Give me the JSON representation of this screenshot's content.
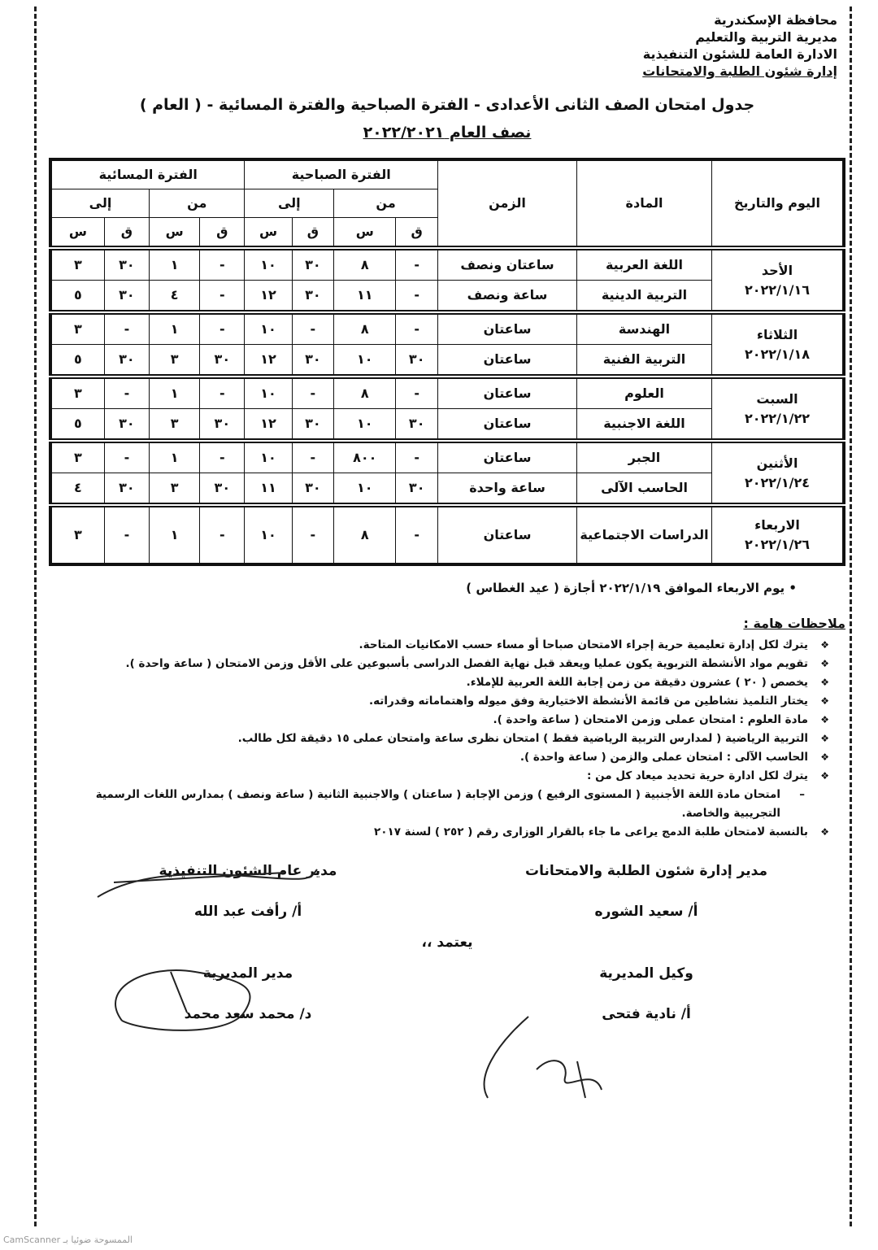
{
  "header": {
    "lines": [
      "محافظة الإسكندرية",
      "مديرية التربية والتعليم",
      "الادارة العامة للشئون التنفيذية",
      "إدارة شئون الطلبة والامتحانات"
    ]
  },
  "title": "جدول امتحان الصف الثانى الأعدادى - الفترة الصباحية والفترة المسائية - ( العام )",
  "subtitle": "نصف العام ٢٠٢٢/٢٠٢١",
  "table": {
    "headers": {
      "day": "اليوم والتاريخ",
      "subject": "المادة",
      "duration": "الزمن",
      "morning": "الفترة الصباحية",
      "evening": "الفترة المسائية",
      "from": "من",
      "to": "إلى",
      "minute": "ق",
      "hour": "س"
    },
    "days": [
      {
        "day": "الأحد",
        "date": "٢٠٢٢/١/١٦",
        "rows": [
          {
            "subject": "اللغة العربية",
            "duration": "ساعتان ونصف",
            "times": [
              "-",
              "٨",
              "٣٠",
              "١٠",
              "-",
              "١",
              "٣٠",
              "٣"
            ]
          },
          {
            "subject": "التربية الدينية",
            "duration": "ساعة ونصف",
            "times": [
              "-",
              "١١",
              "٣٠",
              "١٢",
              "-",
              "٤",
              "٣٠",
              "٥"
            ]
          }
        ]
      },
      {
        "day": "الثلاثاء",
        "date": "٢٠٢٢/١/١٨",
        "rows": [
          {
            "subject": "الهندسة",
            "duration": "ساعتان",
            "times": [
              "-",
              "٨",
              "-",
              "١٠",
              "-",
              "١",
              "-",
              "٣"
            ]
          },
          {
            "subject": "التربية الفنية",
            "duration": "ساعتان",
            "times": [
              "٣٠",
              "١٠",
              "٣٠",
              "١٢",
              "٣٠",
              "٣",
              "٣٠",
              "٥"
            ]
          }
        ]
      },
      {
        "day": "السبت",
        "date": "٢٠٢٢/١/٢٢",
        "rows": [
          {
            "subject": "العلوم",
            "duration": "ساعتان",
            "times": [
              "-",
              "٨",
              "-",
              "١٠",
              "-",
              "١",
              "-",
              "٣"
            ]
          },
          {
            "subject": "اللغة الاجنبية",
            "duration": "ساعتان",
            "times": [
              "٣٠",
              "١٠",
              "٣٠",
              "١٢",
              "٣٠",
              "٣",
              "٣٠",
              "٥"
            ]
          }
        ]
      },
      {
        "day": "الأثنين",
        "date": "٢٠٢٢/١/٢٤",
        "rows": [
          {
            "subject": "الجبر",
            "duration": "ساعتان",
            "times": [
              "-",
              "٨٠٠",
              "-",
              "١٠",
              "-",
              "١",
              "-",
              "٣"
            ]
          },
          {
            "subject": "الحاسب الآلى",
            "duration": "ساعة واحدة",
            "times": [
              "٣٠",
              "١٠",
              "٣٠",
              "١١",
              "٣٠",
              "٣",
              "٣٠",
              "٤"
            ]
          }
        ]
      },
      {
        "day": "الاربعاء",
        "date": "٢٠٢٢/١/٢٦",
        "rows": [
          {
            "subject": "الدراسات الاجتماعية",
            "duration": "ساعتان",
            "times": [
              "-",
              "٨",
              "-",
              "١٠",
              "-",
              "١",
              "-",
              "٣"
            ]
          }
        ]
      }
    ]
  },
  "holiday": "• يوم الاربعاء الموافق ٢٠٢٢/١/١٩ أجازة ( عيد الغطاس )",
  "notes": {
    "heading": "ملاحظات هامة :",
    "items": [
      {
        "type": "it",
        "text": "يترك لكل إدارة تعليمية حرية إجراء الامتحان صباحا أو مساء حسب الامكانيات المتاحة."
      },
      {
        "type": "it",
        "text": "تقويم مواد الأنشطة التربوية يكون عمليا ويعقد قبل نهاية الفصل الدراسى بأسبوعين على الأقل وزمن الامتحان ( ساعة واحدة )."
      },
      {
        "type": "it",
        "text": "يخصص ( ٢٠ ) عشرون دقيقة من زمن إجابة اللغة العربية للإملاء."
      },
      {
        "type": "it",
        "text": "يختار التلميذ نشاطين من قائمة الأنشطة الاختيارية وفق ميوله واهتماماته وقدراته."
      },
      {
        "type": "it",
        "text": "مادة العلوم : امتحان عملى وزمن الامتحان ( ساعة واحدة )."
      },
      {
        "type": "it",
        "text": "التربية الرياضية ( لمدارس التربية الرياضية فقط ) امتحان نظرى ساعة وامتحان عملى ١٥ دقيقة لكل طالب."
      },
      {
        "type": "it",
        "text": "الحاسب الآلى : امتحان عملى والزمن ( ساعة واحدة )."
      },
      {
        "type": "it",
        "text": "يترك لكل ادارة حرية تحديد ميعاد كل من :"
      },
      {
        "type": "sub",
        "text": "امتحان مادة اللغة الأجنبية ( المستوى الرفيع ) وزمن الإجابة ( ساعتان ) والاجنبية الثانية ( ساعة ونصف ) بمدارس اللغات الرسمية التجريبية والخاصة."
      },
      {
        "type": "it",
        "text": "بالنسبة لامتحان طلبة الدمج يراعى ما جاء بالقرار الوزارى رقم ( ٢٥٢ ) لسنة ٢٠١٧"
      }
    ]
  },
  "signatures": {
    "students_title": "مدير إدارة شئون الطلبة والامتحانات",
    "students_name": "أ/ سعيد الشوره",
    "exec_title": "مدير عام الشئون التنفيذية",
    "exec_name": "أ/ رأفت عبد الله",
    "approve": "يعتمد ،،",
    "deputy_title": "وكيل المديرية",
    "deputy_name": "أ/ نادية فتحى",
    "director_title": "مدير المديرية",
    "director_name": "د/ محمد سعد محمد"
  },
  "footer": "CamScanner الممسوحة ضوئيا بـ"
}
